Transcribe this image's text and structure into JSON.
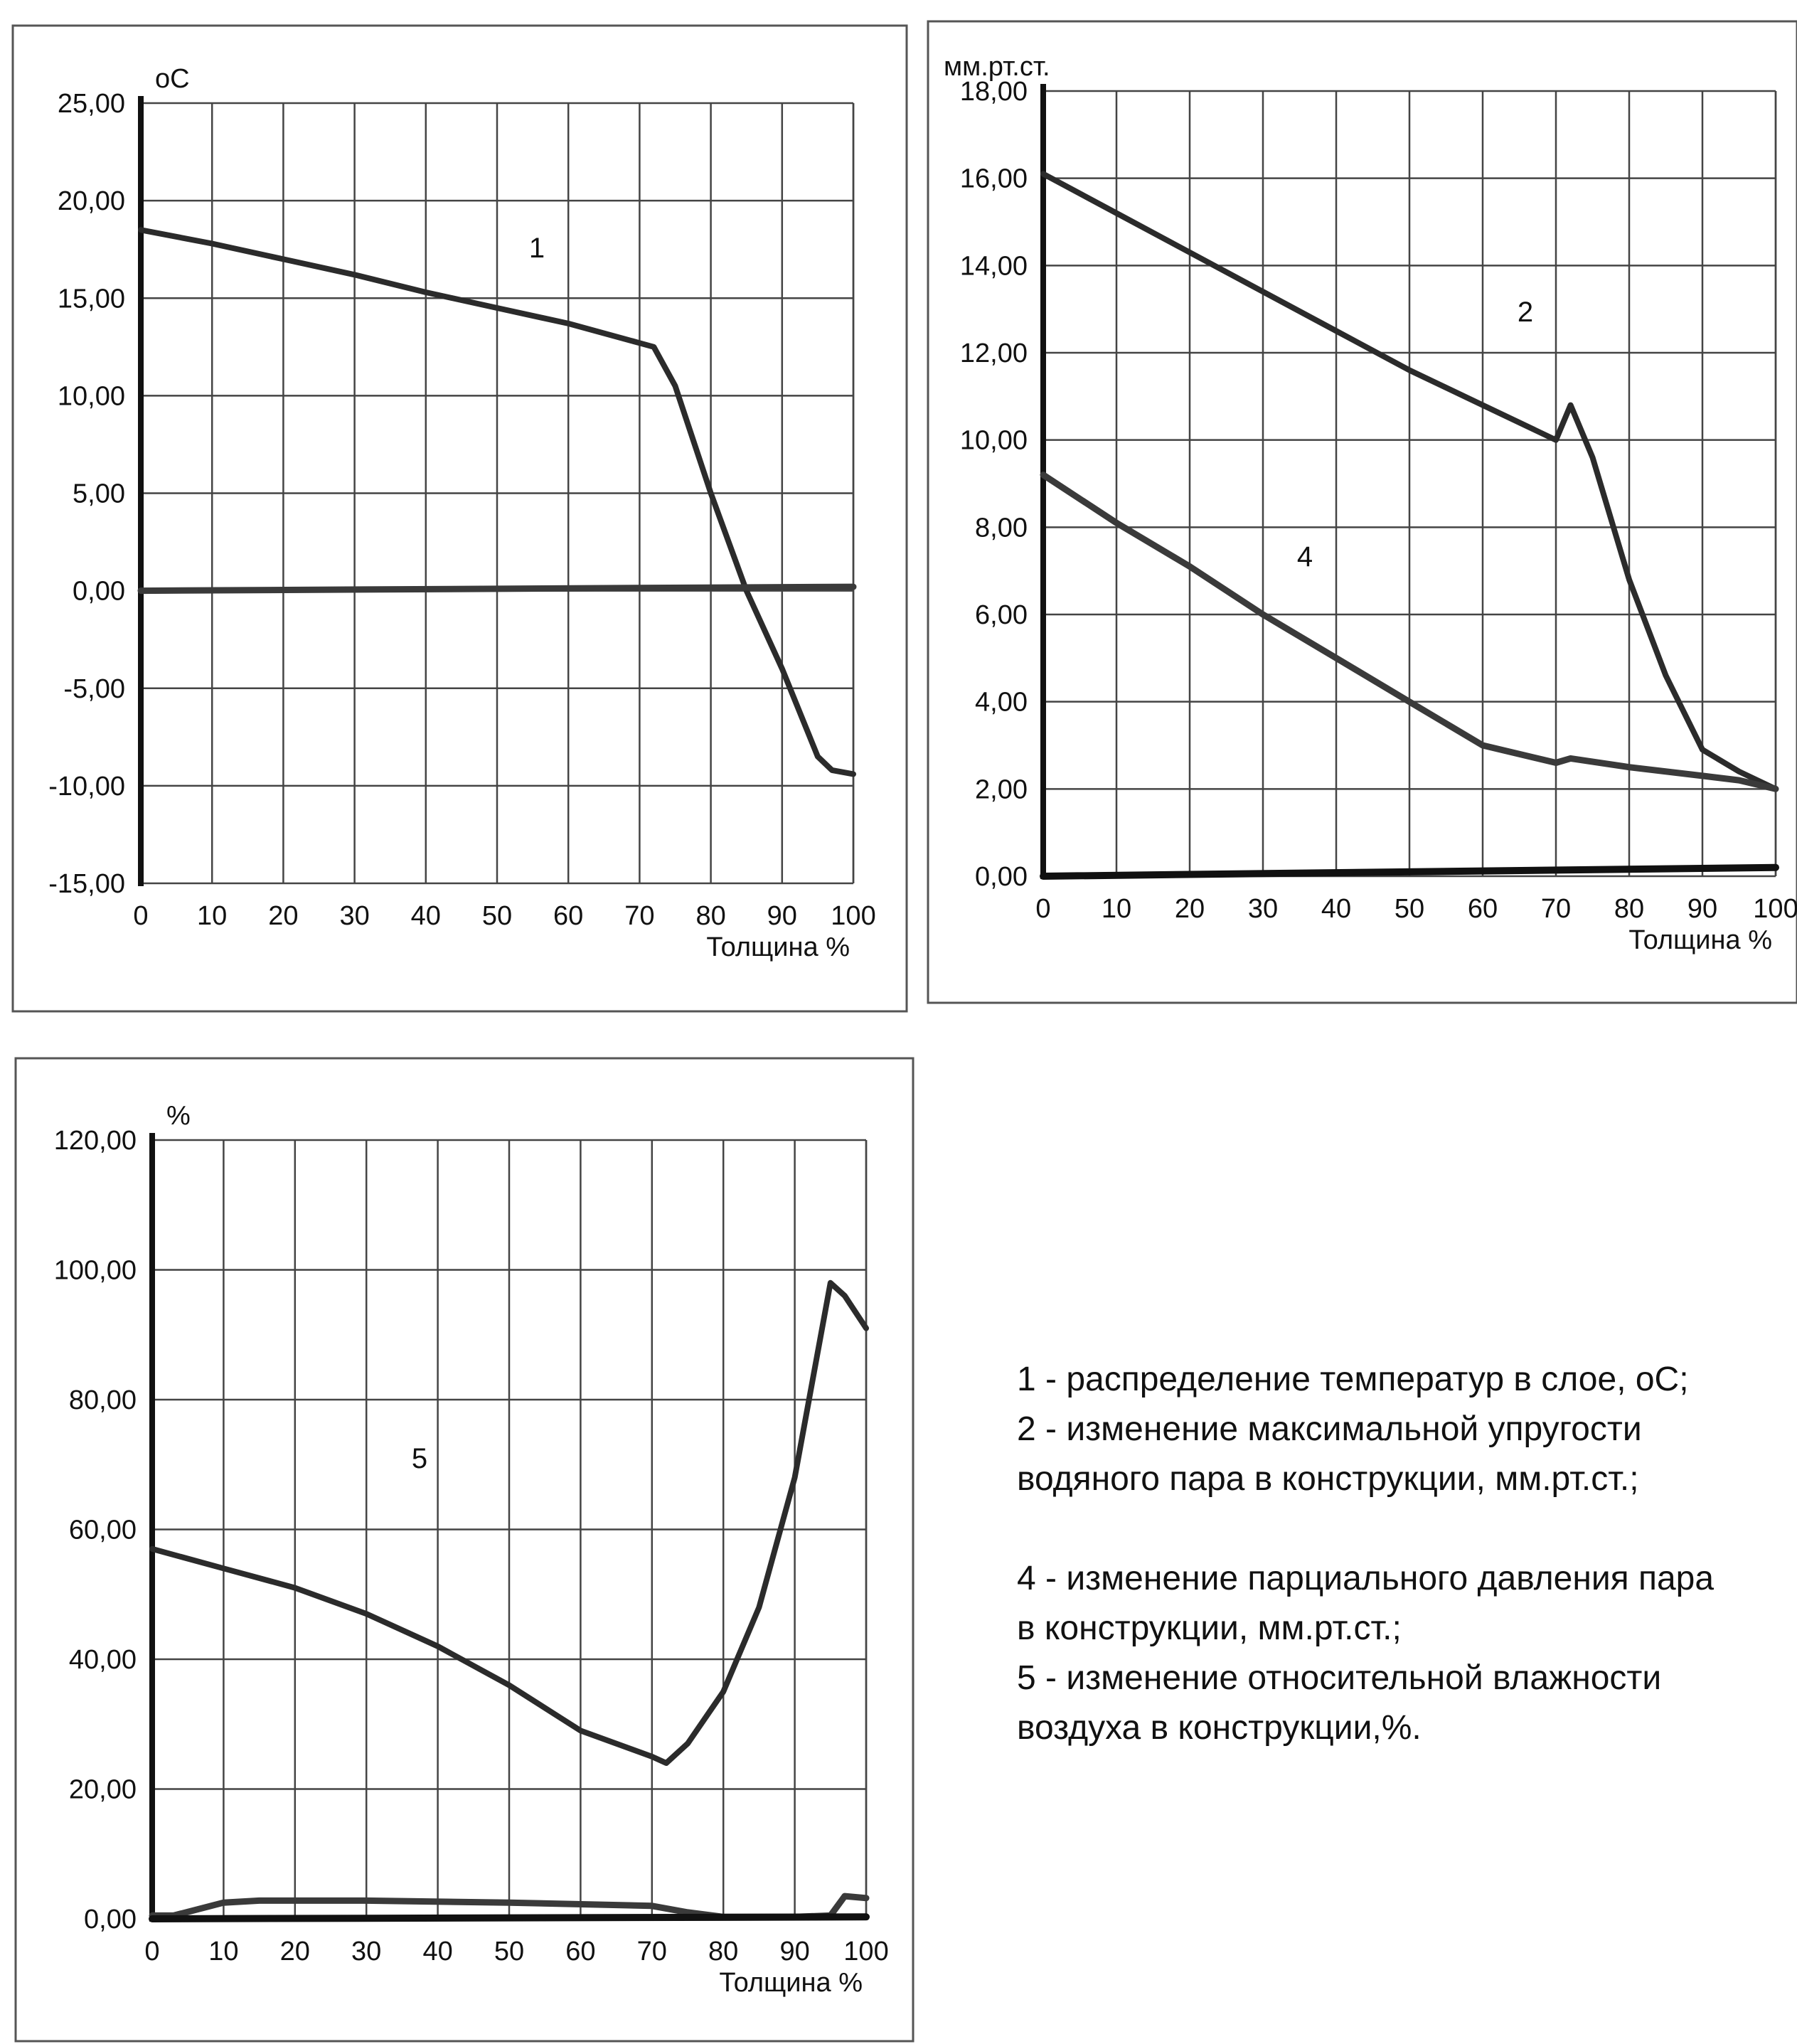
{
  "chart_data": [
    {
      "type": "line",
      "ylabel": "оС",
      "xlabel": "Толщина %",
      "xlim": [
        0,
        100
      ],
      "ylim": [
        -15,
        25
      ],
      "x_ticks": [
        "0",
        "10",
        "20",
        "30",
        "40",
        "50",
        "60",
        "70",
        "80",
        "90",
        "100"
      ],
      "y_ticks": [
        "-15,00",
        "-10,00",
        "-5,00",
        "0,00",
        "5,00",
        "10,00",
        "15,00",
        "20,00",
        "25,00"
      ],
      "grid": true,
      "series": [
        {
          "name": "1",
          "x": [
            0,
            10,
            20,
            30,
            40,
            50,
            60,
            70,
            72,
            75,
            80,
            85,
            90,
            95,
            97,
            100
          ],
          "y": [
            18.5,
            17.8,
            17.0,
            16.2,
            15.3,
            14.5,
            13.7,
            12.7,
            12.5,
            10.5,
            5.0,
            0.0,
            -4.0,
            -8.5,
            -9.2,
            -9.4
          ]
        },
        {
          "name": "",
          "x": [
            0,
            100
          ],
          "y": [
            0.0,
            0.2
          ]
        }
      ]
    },
    {
      "type": "line",
      "ylabel": "мм.рт.ст.",
      "xlabel": "Толщина %",
      "xlim": [
        0,
        100
      ],
      "ylim": [
        0,
        18
      ],
      "x_ticks": [
        "0",
        "10",
        "20",
        "30",
        "40",
        "50",
        "60",
        "70",
        "80",
        "90",
        "100"
      ],
      "y_ticks": [
        "0,00",
        "2,00",
        "4,00",
        "6,00",
        "8,00",
        "10,00",
        "12,00",
        "14,00",
        "16,00",
        "18,00"
      ],
      "grid": true,
      "series": [
        {
          "name": "2",
          "x": [
            0,
            10,
            20,
            30,
            40,
            50,
            60,
            70,
            72,
            75,
            80,
            85,
            90,
            95,
            100
          ],
          "y": [
            16.1,
            15.2,
            14.3,
            13.4,
            12.5,
            11.6,
            10.8,
            10.0,
            10.8,
            9.6,
            6.8,
            4.6,
            2.9,
            2.4,
            2.0
          ]
        },
        {
          "name": "4",
          "x": [
            0,
            10,
            20,
            30,
            40,
            50,
            60,
            70,
            72,
            80,
            90,
            95,
            100
          ],
          "y": [
            9.2,
            8.1,
            7.1,
            6.0,
            5.0,
            4.0,
            3.0,
            2.6,
            2.7,
            2.5,
            2.3,
            2.2,
            2.0
          ]
        },
        {
          "name": "",
          "x": [
            0,
            100
          ],
          "y": [
            0.0,
            0.2
          ]
        }
      ]
    },
    {
      "type": "line",
      "ylabel": "%",
      "xlabel": "Толщина %",
      "xlim": [
        0,
        100
      ],
      "ylim": [
        0,
        120
      ],
      "x_ticks": [
        "0",
        "10",
        "20",
        "30",
        "40",
        "50",
        "60",
        "70",
        "80",
        "90",
        "100"
      ],
      "y_ticks": [
        "0,00",
        "20,00",
        "40,00",
        "60,00",
        "80,00",
        "100,00",
        "120,00"
      ],
      "grid": true,
      "series": [
        {
          "name": "5",
          "x": [
            0,
            10,
            20,
            30,
            40,
            50,
            60,
            70,
            72,
            75,
            80,
            85,
            90,
            95,
            97,
            100
          ],
          "y": [
            57,
            54,
            51,
            47,
            42,
            36,
            29,
            25,
            24,
            27,
            35,
            48,
            68,
            98,
            96,
            91
          ]
        },
        {
          "name": "",
          "x": [
            0,
            3,
            10,
            15,
            30,
            50,
            70,
            75,
            80,
            90,
            95,
            97,
            100
          ],
          "y": [
            0.5,
            0.5,
            2.5,
            2.8,
            2.8,
            2.5,
            2.0,
            1.0,
            0.3,
            0.3,
            0.5,
            3.5,
            3.2
          ]
        },
        {
          "name": "",
          "x": [
            0,
            100
          ],
          "y": [
            0.0,
            0.3
          ]
        }
      ]
    }
  ],
  "legend": {
    "line1": "1 - распределение температур в слое, оС;",
    "line2": "2 - изменение максимальной упругости",
    "line3": "водяного пара в конструкции, мм.рт.ст.;",
    "line4": "4 - изменение парциального давления пара",
    "line5": "в конструкции, мм.рт.ст.;",
    "line6": "5 - изменение относительной влажности",
    "line7": "воздуха в конструкции,%."
  }
}
